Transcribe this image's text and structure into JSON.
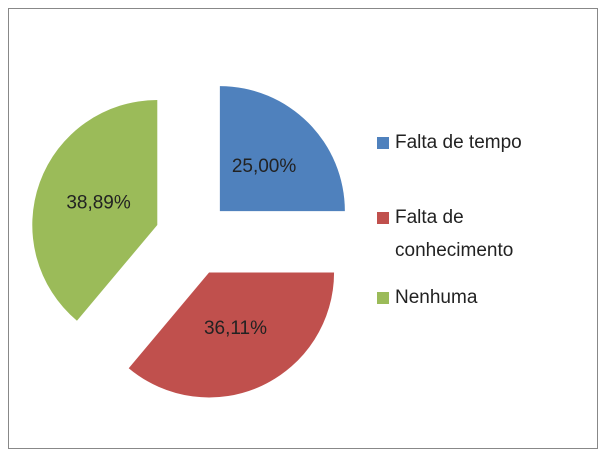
{
  "chart_data": {
    "type": "pie",
    "categories": [
      "Falta de tempo",
      "Falta de conhecimento",
      "Nenhuma"
    ],
    "values": [
      25.0,
      36.11,
      38.89
    ],
    "value_labels": [
      "25,00%",
      "36,11%",
      "38,89%"
    ],
    "colors": [
      "#4f81bd",
      "#c0504d",
      "#9bbb59"
    ],
    "legend": "right"
  }
}
